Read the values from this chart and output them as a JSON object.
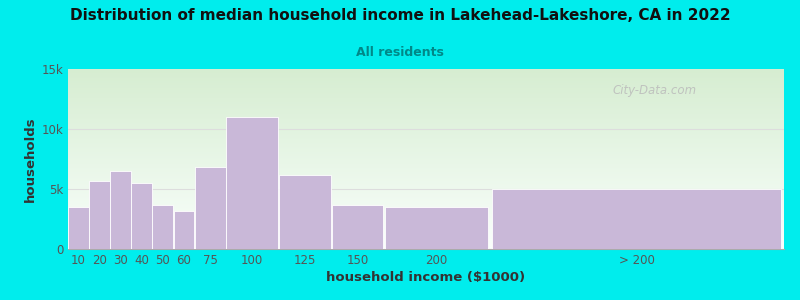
{
  "title": "Distribution of median household income in Lakehead-Lakeshore, CA in 2022",
  "subtitle": "All residents",
  "xlabel": "household income ($1000)",
  "ylabel": "households",
  "background_outer": "#00EDED",
  "bar_color": "#C9B8D8",
  "categories": [
    "10",
    "20",
    "30",
    "40",
    "50",
    "60",
    "75",
    "100",
    "125",
    "150",
    "200",
    "> 200"
  ],
  "values": [
    3500,
    5700,
    6500,
    5500,
    3700,
    3200,
    6800,
    11000,
    6200,
    3700,
    3500,
    5000
  ],
  "x_left": [
    0,
    10,
    20,
    30,
    40,
    50,
    60,
    75,
    100,
    125,
    150,
    200
  ],
  "x_right": [
    10,
    20,
    30,
    40,
    50,
    60,
    75,
    100,
    125,
    150,
    200,
    340
  ],
  "ylim": [
    0,
    15000
  ],
  "ytick_labels": [
    "0",
    "5k",
    "10k",
    "15k"
  ],
  "ytick_vals": [
    0,
    5000,
    10000,
    15000
  ],
  "watermark": "City-Data.com",
  "plot_bg_left_top": "#D8EDD0",
  "plot_bg_right_top": "#E8F5E0",
  "plot_bg_bottom": "#FAFFFE",
  "title_color": "#111111",
  "subtitle_color": "#008888",
  "tick_color": "#555555",
  "axis_label_color": "#333333",
  "watermark_color": "#BBBBBB",
  "hline_color": "#DDDDDD"
}
